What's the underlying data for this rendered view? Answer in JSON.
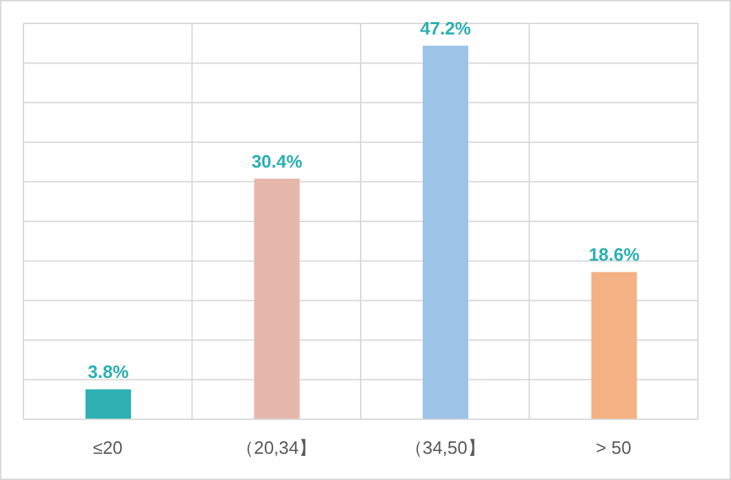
{
  "chart_data": {
    "type": "bar",
    "categories": [
      "≤20",
      "（20,34】",
      "（34,50】",
      "> 50"
    ],
    "values": [
      3.8,
      30.4,
      47.2,
      18.6
    ],
    "colors": [
      "#2fb1b3",
      "#e5b8ab",
      "#9dc3e6",
      "#f4b183"
    ],
    "value_labels": [
      "3.8%",
      "30.4%",
      "47.2%",
      "18.6%"
    ],
    "ylim": [
      0,
      50
    ],
    "grid": true,
    "tick_labels": "x"
  }
}
